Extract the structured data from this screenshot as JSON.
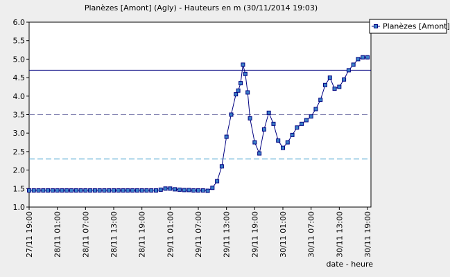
{
  "chart_data": {
    "type": "line",
    "title": "Planèzes [Amont] (Agly) - Hauteurs en m (30/11/2014 19:03)",
    "x_label": "date - heure",
    "legend": "top-right",
    "ylim": [
      1,
      6
    ],
    "yticks": [
      {
        "value": 1,
        "label": "1.0"
      },
      {
        "value": 1.5,
        "label": "1.5"
      },
      {
        "value": 2,
        "label": "2.0"
      },
      {
        "value": 2.5,
        "label": "2.5"
      },
      {
        "value": 3,
        "label": "3.0"
      },
      {
        "value": 3.5,
        "label": "3.5"
      },
      {
        "value": 4,
        "label": "4.0"
      },
      {
        "value": 4.5,
        "label": "4.5"
      },
      {
        "value": 5,
        "label": "5.0"
      },
      {
        "value": 5.5,
        "label": "5.5"
      },
      {
        "value": 6,
        "label": "6.0"
      }
    ],
    "xticks": [
      "27/11 19:00",
      "28/11 01:00",
      "28/11 07:00",
      "28/11 13:00",
      "28/11 19:00",
      "29/11 01:00",
      "29/11 07:00",
      "29/11 13:00",
      "29/11 19:00",
      "30/11 01:00",
      "30/11 07:00",
      "30/11 13:00",
      "30/11 19:00"
    ],
    "reference_lines": [
      {
        "value": 4.7,
        "color": "#000080",
        "dash": false
      },
      {
        "value": 3.5,
        "color": "#8080b0",
        "dash": true
      },
      {
        "value": 2.3,
        "color": "#3399cc",
        "dash": true
      }
    ],
    "x": [
      "27/11 19:00",
      "27/11 20:00",
      "27/11 21:00",
      "27/11 22:00",
      "27/11 23:00",
      "28/11 00:00",
      "28/11 01:00",
      "28/11 02:00",
      "28/11 03:00",
      "28/11 04:00",
      "28/11 05:00",
      "28/11 06:00",
      "28/11 07:00",
      "28/11 08:00",
      "28/11 09:00",
      "28/11 10:00",
      "28/11 11:00",
      "28/11 12:00",
      "28/11 13:00",
      "28/11 14:00",
      "28/11 15:00",
      "28/11 16:00",
      "28/11 17:00",
      "28/11 18:00",
      "28/11 19:00",
      "28/11 20:00",
      "28/11 21:00",
      "28/11 22:00",
      "28/11 23:00",
      "29/11 00:00",
      "29/11 01:00",
      "29/11 02:00",
      "29/11 03:00",
      "29/11 04:00",
      "29/11 05:00",
      "29/11 06:00",
      "29/11 07:00",
      "29/11 08:00",
      "29/11 09:00",
      "29/11 10:00",
      "29/11 11:00",
      "29/11 12:00",
      "29/11 13:00",
      "29/11 14:00",
      "29/11 15:00",
      "29/11 15:30",
      "29/11 16:00",
      "29/11 16:30",
      "29/11 17:00",
      "29/11 17:30",
      "29/11 18:00",
      "29/11 19:00",
      "29/11 20:00",
      "29/11 21:00",
      "29/11 22:00",
      "29/11 23:00",
      "30/11 00:00",
      "30/11 01:00",
      "30/11 02:00",
      "30/11 03:00",
      "30/11 04:00",
      "30/11 05:00",
      "30/11 06:00",
      "30/11 07:00",
      "30/11 08:00",
      "30/11 09:00",
      "30/11 10:00",
      "30/11 11:00",
      "30/11 12:00",
      "30/11 13:00",
      "30/11 14:00",
      "30/11 15:00",
      "30/11 16:00",
      "30/11 17:00",
      "30/11 18:00",
      "30/11 19:00"
    ],
    "series": [
      {
        "name": "Planèzes [Amont]",
        "color": "#000080",
        "marker_color": "#3a80c8",
        "values": [
          1.45,
          1.45,
          1.45,
          1.45,
          1.45,
          1.45,
          1.45,
          1.45,
          1.45,
          1.45,
          1.45,
          1.45,
          1.45,
          1.45,
          1.45,
          1.45,
          1.45,
          1.45,
          1.45,
          1.45,
          1.45,
          1.45,
          1.45,
          1.45,
          1.45,
          1.45,
          1.45,
          1.45,
          1.47,
          1.5,
          1.5,
          1.48,
          1.47,
          1.46,
          1.46,
          1.45,
          1.45,
          1.45,
          1.44,
          1.52,
          1.7,
          2.1,
          2.9,
          3.5,
          4.05,
          4.15,
          4.35,
          4.85,
          4.6,
          4.1,
          3.4,
          2.75,
          2.45,
          3.1,
          3.55,
          3.25,
          2.8,
          2.6,
          2.75,
          2.95,
          3.15,
          3.25,
          3.35,
          3.45,
          3.65,
          3.9,
          4.3,
          4.5,
          4.2,
          4.25,
          4.45,
          4.7,
          4.85,
          5.0,
          5.05,
          5.05
        ]
      }
    ]
  }
}
